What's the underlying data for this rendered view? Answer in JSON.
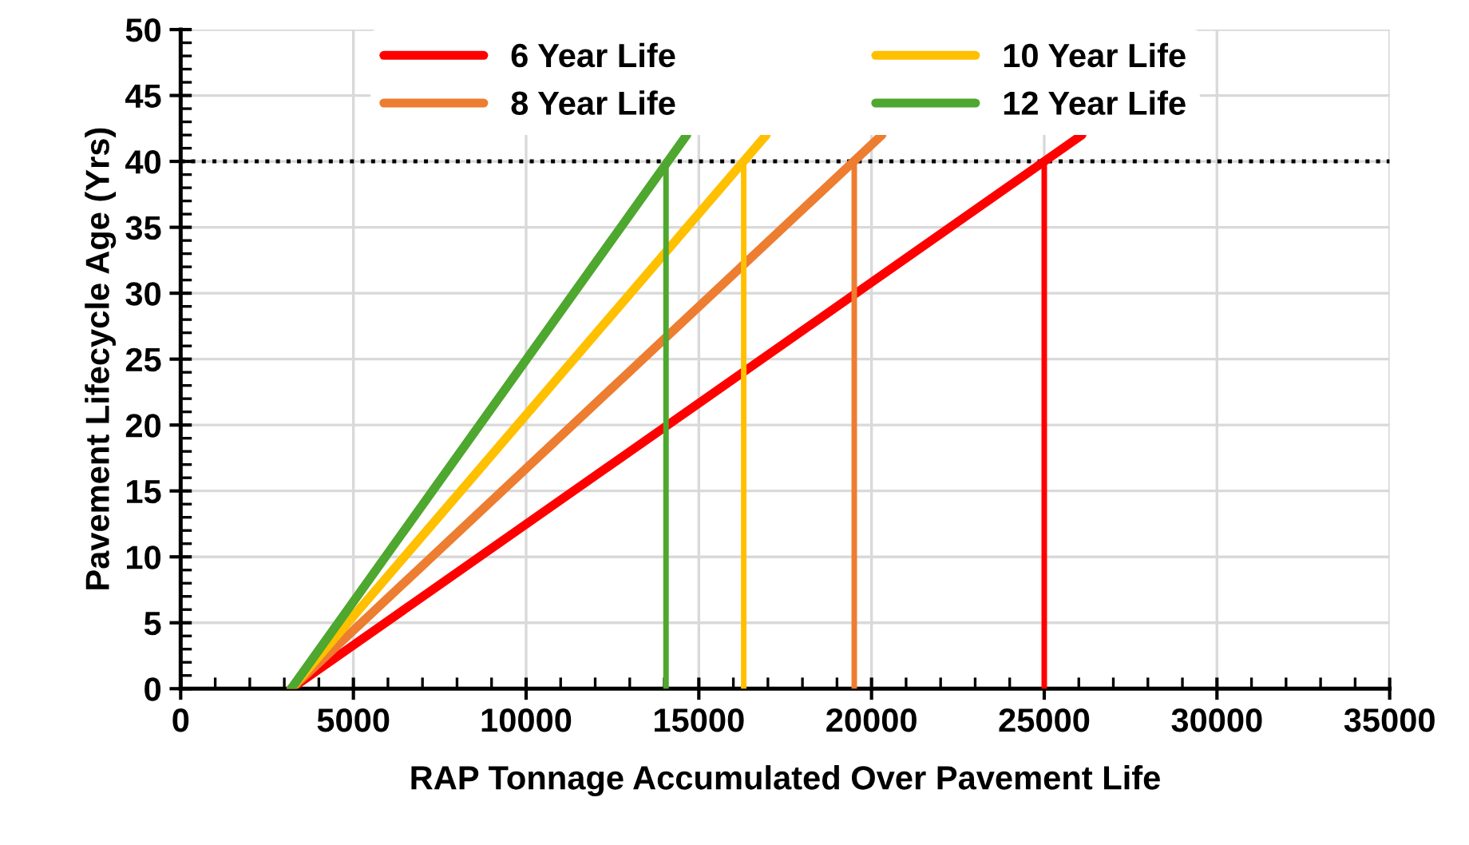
{
  "chart_data": {
    "type": "line",
    "xlabel": "RAP Tonnage Accumulated Over Pavement Life",
    "ylabel": "Pavement Lifecycle Age (Yrs)",
    "series": [
      {
        "name": "6 Year Life",
        "color": "#ff0000",
        "x": [
          3200,
          26090
        ],
        "values": [
          0,
          42
        ]
      },
      {
        "name": "8 Year Life",
        "color": "#ed7d31",
        "x": [
          3200,
          20300
        ],
        "values": [
          0,
          42
        ]
      },
      {
        "name": "10 Year Life",
        "color": "#ffc000",
        "x": [
          3200,
          16950
        ],
        "values": [
          0,
          42
        ]
      },
      {
        "name": "12 Year Life",
        "color": "#4ea72e",
        "x": [
          3200,
          14650
        ],
        "values": [
          0,
          42
        ]
      },
      {
        "color": "#ff0000",
        "x": [
          25000,
          25000
        ],
        "values": [
          0,
          40
        ]
      },
      {
        "color": "#ed7d31",
        "x": [
          19500,
          19500
        ],
        "values": [
          0,
          40
        ]
      },
      {
        "color": "#ffc000",
        "x": [
          16300,
          16300
        ],
        "values": [
          0,
          40
        ]
      },
      {
        "color": "#4ea72e",
        "x": [
          14050,
          14050
        ],
        "values": [
          0,
          40
        ]
      }
    ],
    "ref_lines": [
      {
        "axis": "y",
        "value": 40,
        "color": "#000000",
        "line_style": "dotted"
      }
    ],
    "xlim": [
      0,
      35000
    ],
    "xticks": [
      0,
      5000,
      10000,
      15000,
      20000,
      25000,
      30000,
      35000
    ],
    "ylim": [
      0,
      50
    ],
    "yticks": [
      0,
      5,
      10,
      15,
      20,
      25,
      30,
      35,
      40,
      45,
      50
    ],
    "grid": true,
    "legend": "top",
    "marker": "none",
    "line_style": "solid"
  }
}
